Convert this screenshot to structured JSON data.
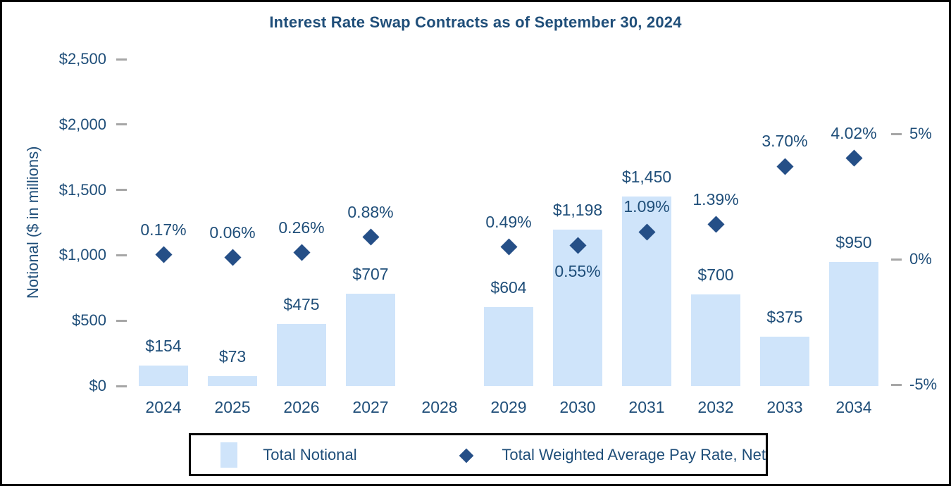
{
  "title": "Interest Rate Swap Contracts as of September 30, 2024",
  "left_axis": {
    "title": "Notional ($ in millions)",
    "ticks": [
      {
        "label": "$2,500",
        "value": 2500
      },
      {
        "label": "$2,000",
        "value": 2000
      },
      {
        "label": "$1,500",
        "value": 1500
      },
      {
        "label": "$1,000",
        "value": 1000
      },
      {
        "label": "$500",
        "value": 500
      },
      {
        "label": "$0",
        "value": 0
      }
    ]
  },
  "right_axis": {
    "ticks": [
      {
        "label": "5%",
        "value": 5
      },
      {
        "label": "0%",
        "value": 0
      },
      {
        "label": "-5%",
        "value": -5
      }
    ]
  },
  "legend": {
    "diamond_glyph": "◆",
    "items": [
      {
        "label": "Total Notional",
        "marker": "square"
      },
      {
        "label": "Total Weighted Average Pay Rate, Net",
        "marker": "diamond"
      }
    ]
  },
  "colors": {
    "bar_fill": "#CFE4FA",
    "marker_fill": "#254F87",
    "text": "#1F4E79",
    "tick_dash": "#A6A6A6",
    "border": "#000000"
  },
  "chart_data": {
    "type": "bar",
    "title": "Interest Rate Swap Contracts as of September 30, 2024",
    "categories": [
      "2024",
      "2025",
      "2026",
      "2027",
      "2028",
      "2029",
      "2030",
      "2031",
      "2032",
      "2033",
      "2034"
    ],
    "series": [
      {
        "name": "Total Notional",
        "type": "bar",
        "axis": "left",
        "values": [
          154,
          73,
          475,
          707,
          null,
          604,
          1198,
          1450,
          700,
          375,
          950
        ],
        "labels": [
          "$154",
          "$73",
          "$475",
          "$707",
          null,
          "$604",
          "$1,198",
          "$1,450",
          "$700",
          "$375",
          "$950"
        ]
      },
      {
        "name": "Total Weighted Average Pay Rate, Net",
        "type": "scatter",
        "axis": "right",
        "values": [
          0.17,
          0.06,
          0.26,
          0.88,
          null,
          0.49,
          0.55,
          1.09,
          1.39,
          3.7,
          4.02
        ],
        "labels": [
          "0.17%",
          "0.06%",
          "0.26%",
          "0.88%",
          null,
          "0.49%",
          "0.55%",
          "1.09%",
          "1.39%",
          "3.70%",
          "4.02%"
        ],
        "label_positions": [
          "above",
          "above",
          "above",
          "above",
          null,
          "above",
          "below",
          "above",
          "above",
          "above",
          "above"
        ]
      }
    ],
    "ylabel_left": "Notional ($ in millions)",
    "left_ylim": [
      0,
      2500
    ],
    "right_axis_ticks_shown": [
      -5,
      0,
      5
    ],
    "grid": false,
    "legend_position": "bottom"
  }
}
